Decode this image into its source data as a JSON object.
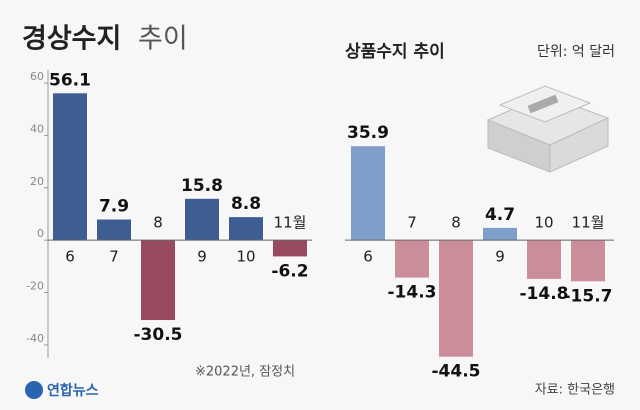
{
  "chart_data": [
    {
      "type": "bar",
      "title": "경상수지",
      "title_suffix": "추이",
      "categories": [
        "6",
        "7",
        "8",
        "9",
        "10",
        "11월"
      ],
      "values": [
        56.1,
        7.9,
        -30.5,
        15.8,
        8.8,
        -6.2
      ],
      "color": "#3d5d93",
      "negative_color": "#9a4a60",
      "ylim": [
        -45,
        65
      ],
      "yticks": [
        -40,
        -20,
        0,
        20,
        40,
        60
      ]
    },
    {
      "type": "bar",
      "title": "상품수지 추이",
      "categories": [
        "6",
        "7",
        "8",
        "9",
        "10",
        "11월"
      ],
      "values": [
        35.9,
        -14.3,
        -44.5,
        4.7,
        -14.8,
        -15.7
      ],
      "color": "#7f9ec9",
      "negative_color": "#cc8d9b",
      "ylim": [
        -45,
        65
      ]
    }
  ],
  "unit": "단위: 억 달러",
  "note": "※2022년, 잠정치",
  "source": "자료: 한국은행",
  "brand": "연합뉴스"
}
